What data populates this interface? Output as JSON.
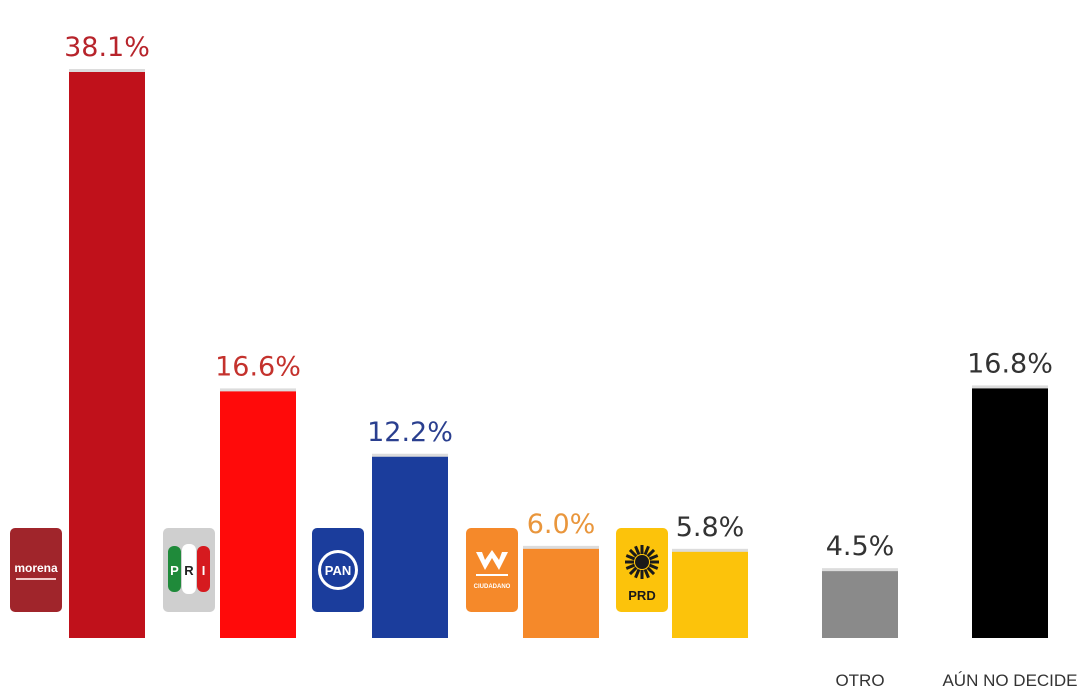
{
  "chart_data": {
    "type": "bar",
    "categories": [
      "MORENA",
      "PRI",
      "PAN",
      "MC",
      "PRD",
      "OTRO",
      "AÚN NO DECIDE"
    ],
    "category_labels": [
      "",
      "",
      "",
      "",
      "",
      "OTRO",
      "AÚN NO DECIDE"
    ],
    "values": [
      38.1,
      16.6,
      12.2,
      6.0,
      5.8,
      4.5,
      16.8
    ],
    "value_labels": [
      "38.1%",
      "16.6%",
      "12.2%",
      "6.0%",
      "5.8%",
      "4.5%",
      "16.8%"
    ],
    "bar_colors": [
      "#c0111b",
      "#ff0a0a",
      "#1b3d9c",
      "#f5892a",
      "#fcc30b",
      "#8a8a8a",
      "#000000"
    ],
    "label_colors": [
      "#b7242b",
      "#c4322d",
      "#2a3f8f",
      "#e9963c",
      "#333333",
      "#333333",
      "#333333"
    ],
    "logos": [
      {
        "icon": "morena-logo",
        "text": "morena",
        "color": "#a0252b"
      },
      {
        "icon": "pri-logo",
        "text": "PRI",
        "color": "#e7e7e7"
      },
      {
        "icon": "pan-logo",
        "text": "PAN",
        "color": "#1b3d9c"
      },
      {
        "icon": "movimiento-ciudadano-logo",
        "text": "CIUDADANO",
        "color": "#f5892a"
      },
      {
        "icon": "prd-logo",
        "text": "PRD",
        "color": "#fcc30b"
      },
      null,
      null
    ],
    "title": "",
    "xlabel": "",
    "ylabel": "",
    "ylim": [
      0,
      38.1
    ],
    "grid": false,
    "legend": false
  }
}
